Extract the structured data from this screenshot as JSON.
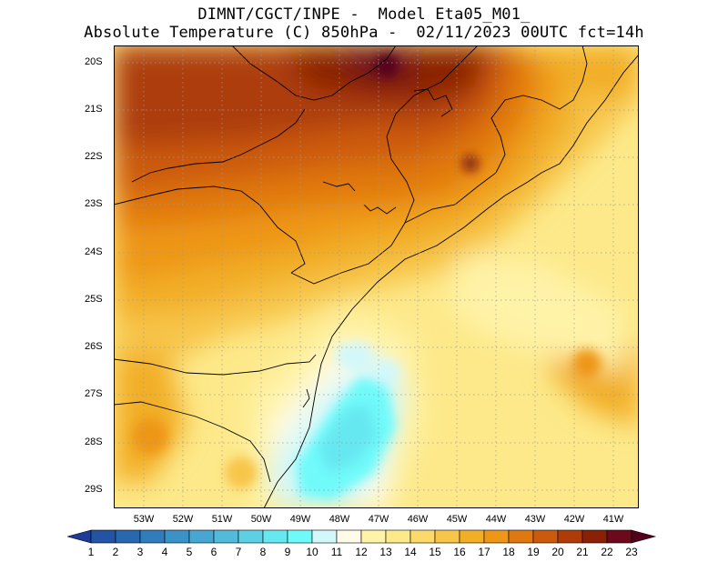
{
  "header": {
    "line1": "DIMNT/CGCT/INPE -  Model Eta05_M01_",
    "line2": "Absolute Temperature (C) 850hPa -  02/11/2023 00UTC fct=14h"
  },
  "map": {
    "lat_labels": [
      "20S",
      "21S",
      "22S",
      "23S",
      "24S",
      "25S",
      "26S",
      "27S",
      "28S",
      "29S"
    ],
    "lon_labels": [
      "53W",
      "52W",
      "51W",
      "50W",
      "49W",
      "48W",
      "47W",
      "46W",
      "45W",
      "44W",
      "43W",
      "42W",
      "41W"
    ],
    "lat_range": [
      -29.5,
      -19.85
    ],
    "lon_range": [
      -53.9,
      -40.45
    ]
  },
  "colorbar": {
    "values": [
      "1",
      "2",
      "3",
      "4",
      "5",
      "6",
      "7",
      "8",
      "9",
      "10",
      "11",
      "12",
      "13",
      "14",
      "15",
      "16",
      "17",
      "18",
      "19",
      "20",
      "21",
      "22",
      "23"
    ],
    "colors": [
      "#1e3c96",
      "#2353a3",
      "#2868af",
      "#2f7dbb",
      "#3a92c7",
      "#47a6d2",
      "#52bbdc",
      "#5ed0e6",
      "#66e8f0",
      "#6ffafa",
      "#d2f8fa",
      "#fffbe8",
      "#fff3a8",
      "#fde98a",
      "#fbd96a",
      "#f7c548",
      "#f2ae25",
      "#ee9618",
      "#e07811",
      "#cc5a0c",
      "#ad3c08",
      "#8a2006",
      "#6b0a1a",
      "#52001c"
    ]
  }
}
